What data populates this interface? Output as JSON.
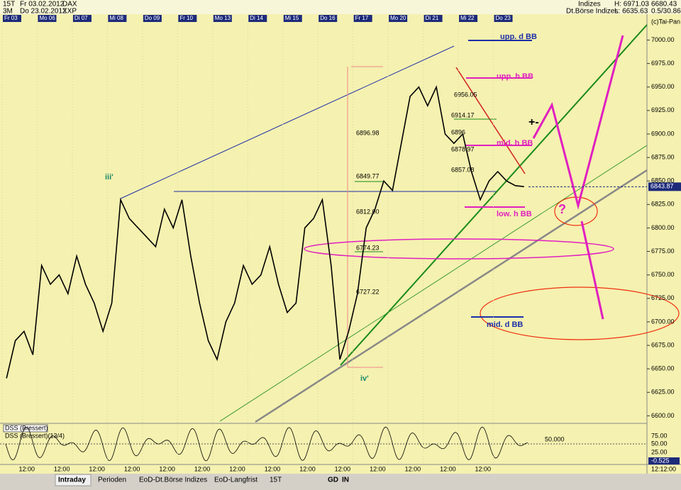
{
  "chart_data": {
    "type": "line",
    "categories": [
      "Fr 03",
      null,
      null,
      null,
      "Mo 06",
      null,
      null,
      null,
      "Di 07",
      null,
      null,
      null,
      "Mi 08",
      null,
      null,
      null,
      "Do 09",
      null,
      null,
      null,
      "Fr 10",
      null,
      null,
      null,
      "Mo 13",
      null,
      null,
      null,
      "Di 14",
      null,
      null,
      null,
      "Mi 15",
      null,
      null,
      null,
      "Do 16",
      null,
      null,
      null,
      "Fr 17",
      null,
      null,
      null,
      "Mo 20",
      null,
      null,
      null,
      "Di 21",
      null,
      null,
      null,
      "Mi 22",
      null,
      null,
      null,
      "Do 23",
      null,
      null,
      null
    ],
    "values": [
      6640,
      6680,
      6690,
      6665,
      6760,
      6740,
      6750,
      6730,
      6770,
      6740,
      6720,
      6690,
      6720,
      6830,
      6810,
      6800,
      6790,
      6780,
      6820,
      6800,
      6830,
      6770,
      6720,
      6680,
      6660,
      6700,
      6720,
      6760,
      6740,
      6750,
      6780,
      6740,
      6710,
      6720,
      6800,
      6810,
      6830,
      6760,
      6660,
      6690,
      6730,
      6800,
      6820,
      6850,
      6840,
      6890,
      6940,
      6950,
      6930,
      6950,
      6900,
      6890,
      6900,
      6860,
      6830,
      6850,
      6860,
      6850,
      6845,
      6844
    ],
    "color": "#000000",
    "ylim": [
      6592,
      7020
    ],
    "yticks": [
      {
        "value": 6600,
        "label": "6600.00"
      },
      {
        "value": 6625,
        "label": "6625.00"
      },
      {
        "value": 6650,
        "label": "6650.00"
      },
      {
        "value": 6675,
        "label": "6675.00"
      },
      {
        "value": 6700,
        "label": "6700.00"
      },
      {
        "value": 6725,
        "label": "6725.00"
      },
      {
        "value": 6750,
        "label": "6750.00"
      },
      {
        "value": 6775,
        "label": "6775.00"
      },
      {
        "value": 6800,
        "label": "6800.00"
      },
      {
        "value": 6825,
        "label": "6825.00"
      },
      {
        "value": 6850,
        "label": "6850.00"
      },
      {
        "value": 6875,
        "label": "6875.00"
      },
      {
        "value": 6900,
        "label": "6900.00"
      },
      {
        "value": 6925,
        "label": "6925.00"
      },
      {
        "value": 6950,
        "label": "6950.00"
      },
      {
        "value": 6975,
        "label": "6975.00"
      },
      {
        "value": 7000,
        "label": "7000.00"
      }
    ],
    "last_price": {
      "value": 6843.87,
      "label": "6843.87"
    },
    "annotations": [
      "iii'",
      "iv'",
      "upp. d BB",
      "upp. h BB",
      "mid. h BB",
      "low. h BB",
      "mid. d BB",
      "+-",
      "?",
      "6896.98",
      "6849.77",
      "6812.00",
      "6774.23",
      "6727.22",
      "6956.05",
      "6914.17",
      "6896",
      "6878.97",
      "6857.08",
      "(c)Tai-Pan"
    ]
  },
  "header": {
    "left": [
      "15T",
      "Fr 03.02.2012",
      "DAX",
      "3M",
      "Do 23.02.2012",
      "XXP"
    ],
    "right": [
      "Indizes",
      "H: 6971.03",
      "6680.43",
      "Dt.Börse Indizes",
      "L: 6635.63",
      "0.5/30.86"
    ]
  },
  "lower_panel": {
    "titles": [
      "DSS (Bressert)",
      "DSS (Bressert)(13/4)"
    ],
    "level": "50.000",
    "labels": [
      "75.00",
      "50.00",
      "25.00",
      "-0.525"
    ]
  },
  "time_axis": [
    "12:00",
    "12:00",
    "12:00",
    "12:00",
    "12:00",
    "12:00",
    "12:00",
    "12:00",
    "12:00",
    "12:00",
    "12:00",
    "12:00",
    "12:00",
    "12:00"
  ],
  "clock": "12:12:00",
  "tabs": [
    "Intraday",
    "Perioden",
    "EoD-Dt.Börse Indizes",
    "EoD-Langfrist",
    "15T",
    "GD",
    "IN"
  ]
}
